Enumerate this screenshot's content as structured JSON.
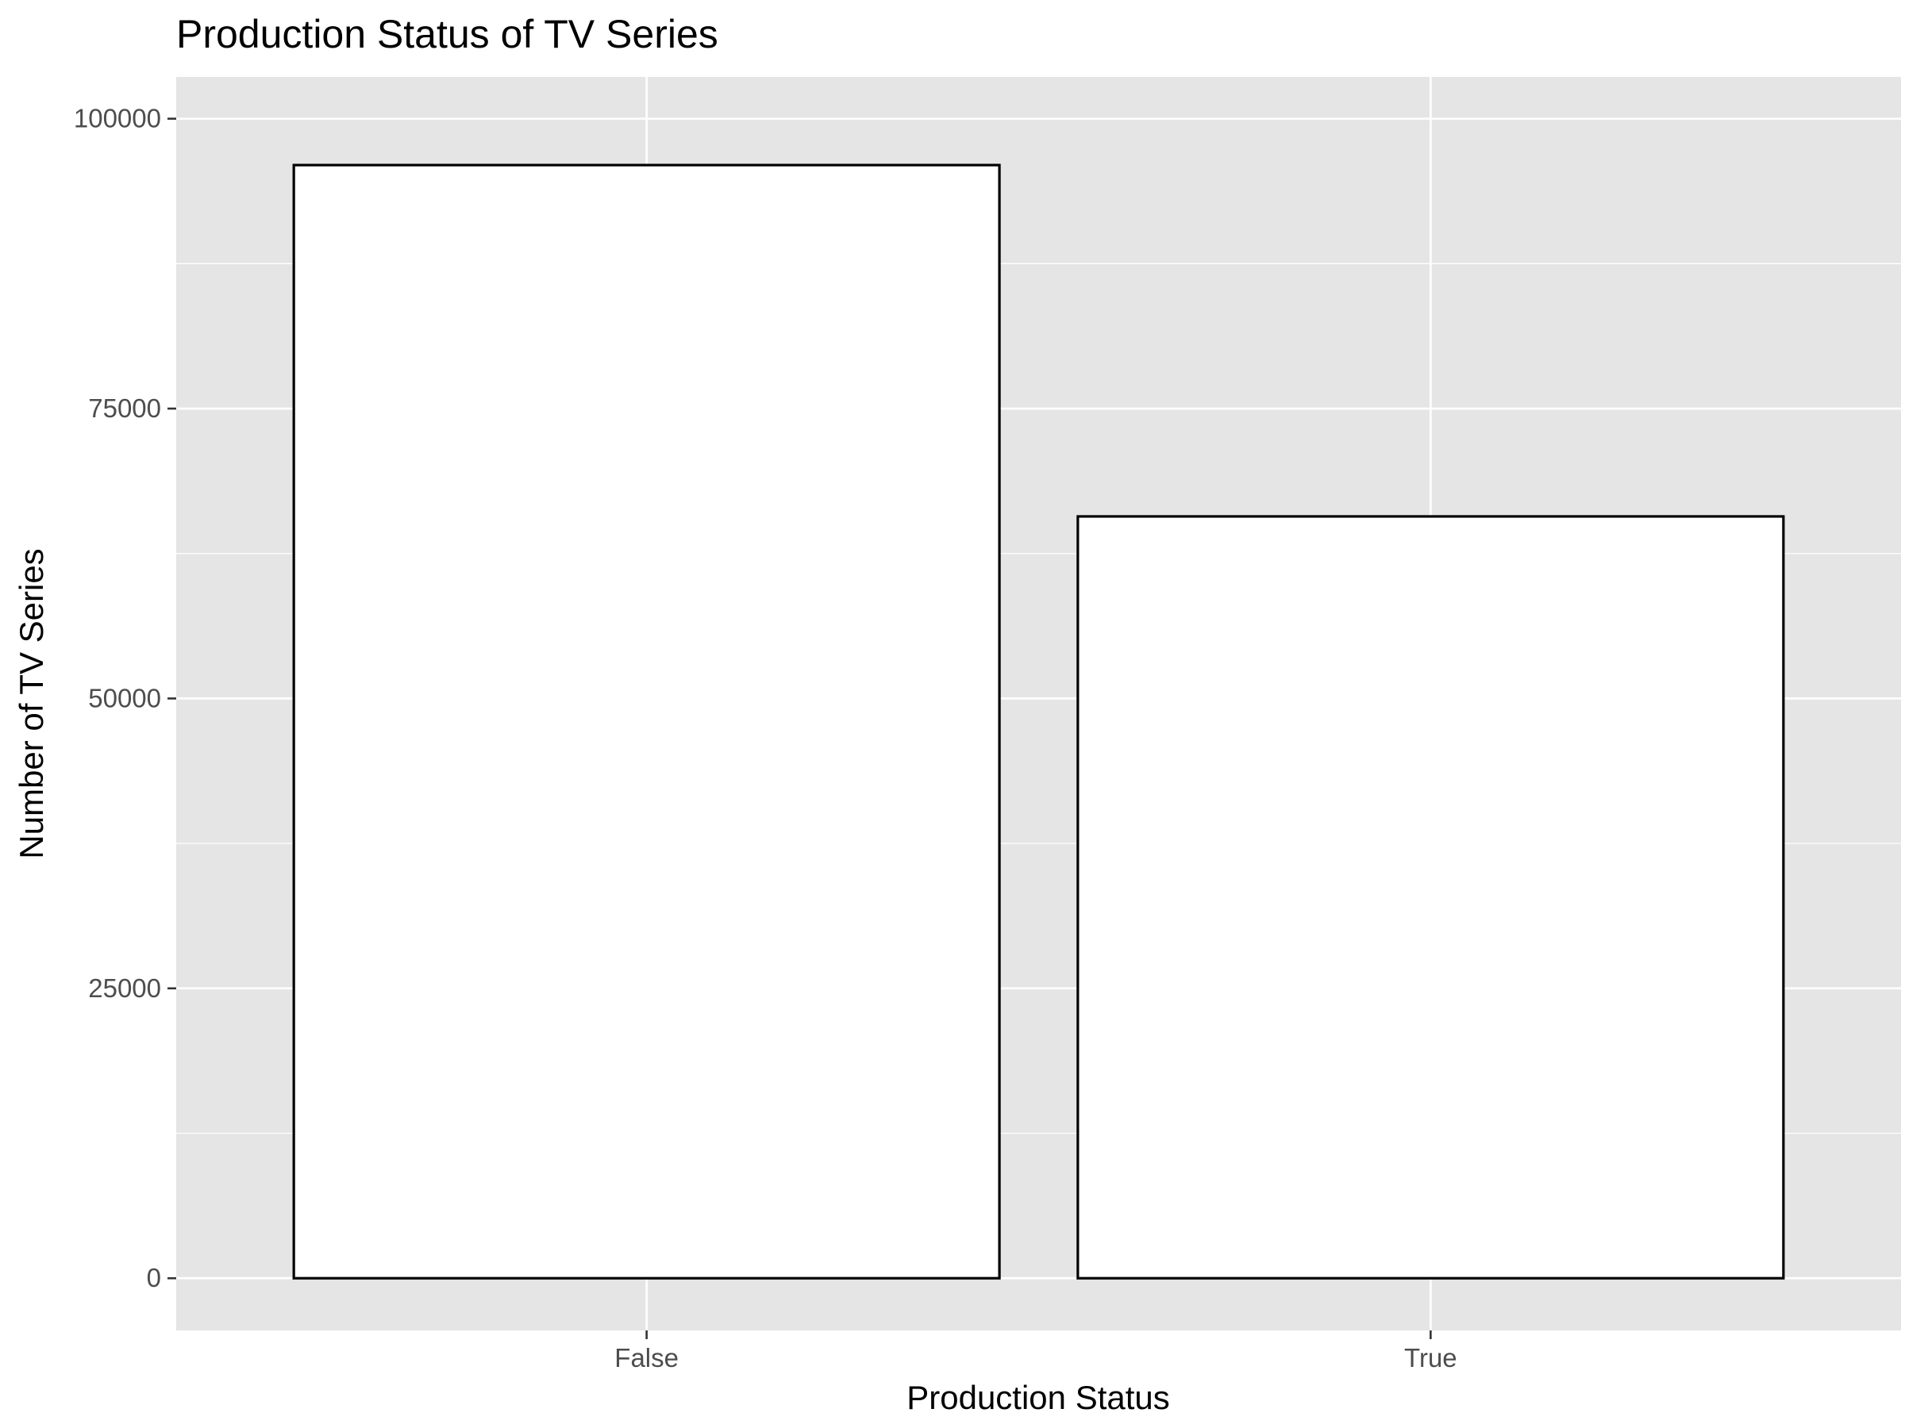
{
  "chart_data": {
    "type": "bar",
    "title": "Production Status of TV Series",
    "xlabel": "Production Status",
    "ylabel": "Number of TV Series",
    "categories": [
      "False",
      "True"
    ],
    "values": [
      96000,
      65700
    ],
    "ylim": [
      -4500,
      103600
    ],
    "yticks": [
      0,
      25000,
      50000,
      75000,
      100000
    ],
    "ytick_labels": [
      "0",
      "25000",
      "50000",
      "75000",
      "100000"
    ],
    "grid": true,
    "legend": "none",
    "colors": {
      "panel_background": "#e5e5e5",
      "gridline": "#ffffff",
      "bar_fill": "#ffffff",
      "bar_outline": "#000000",
      "tick_label": "#4d4d4d",
      "tick_mark": "#333333"
    }
  }
}
